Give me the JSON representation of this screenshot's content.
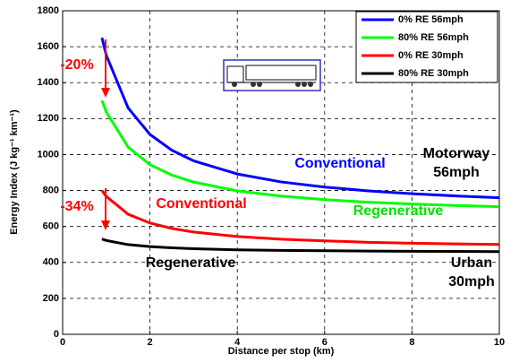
{
  "chart_data": {
    "type": "line",
    "xlabel": "Distance per stop (km)",
    "ylabel": "Energy Index (J kg⁻¹ km⁻¹)",
    "x": [
      0.9,
      1,
      1.5,
      2,
      2.5,
      3,
      4,
      5,
      6,
      7,
      8,
      9,
      10
    ],
    "series": [
      {
        "name": "0% RE 56mph",
        "color": "#0000ff",
        "values": [
          1650,
          1552,
          1259,
          1112,
          1024,
          965,
          892,
          848,
          819,
          798,
          782,
          770,
          760
        ]
      },
      {
        "name": "80% RE 56mph",
        "color": "#00ff00",
        "values": [
          1301,
          1236,
          1041,
          944,
          886,
          847,
          798,
          769,
          749,
          735,
          725,
          717,
          710
        ]
      },
      {
        "name": "0% RE 30mph",
        "color": "#ff0000",
        "values": [
          800,
          767,
          668,
          619,
          589,
          569,
          544,
          529,
          520,
          512,
          507,
          503,
          500
        ]
      },
      {
        "name": "80% RE 30mph",
        "color": "#000000",
        "values": [
          530,
          522,
          499,
          488,
          481,
          476,
          470,
          467,
          465,
          463,
          462,
          461,
          460
        ]
      }
    ],
    "xlim": [
      0,
      10
    ],
    "xticks": [
      0,
      2,
      4,
      6,
      8,
      10
    ],
    "ylim": [
      0,
      1800
    ],
    "yticks": [
      0,
      200,
      400,
      600,
      800,
      1000,
      1200,
      1400,
      1600,
      1800
    ],
    "grid": true,
    "legend": "upper right",
    "annotations": [
      "-20%",
      "-34%",
      "Conventional",
      "Motorway",
      "56mph",
      "Regenerative",
      "Conventional",
      "Regenerative",
      "Urban",
      "30mph"
    ]
  }
}
